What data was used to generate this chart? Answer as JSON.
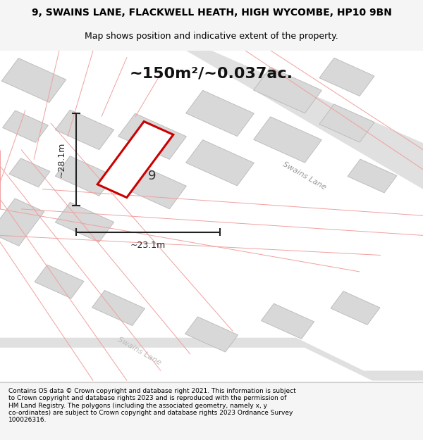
{
  "title_line1": "9, SWAINS LANE, FLACKWELL HEATH, HIGH WYCOMBE, HP10 9BN",
  "title_line2": "Map shows position and indicative extent of the property.",
  "area_text": "~150m²/~0.037ac.",
  "dim_width": "~23.1m",
  "dim_height": "~28.1m",
  "plot_number": "9",
  "footer_wrapped": "Contains OS data © Crown copyright and database right 2021. This information is subject\nto Crown copyright and database rights 2023 and is reproduced with the permission of\nHM Land Registry. The polygons (including the associated geometry, namely x, y\nco-ordinates) are subject to Crown copyright and database rights 2023 Ordnance Survey\n100026316.",
  "bg_color": "#f5f5f5",
  "map_bg": "#ffffff",
  "road_color": "#e0e0e0",
  "building_fill": "#d8d8d8",
  "building_stroke": "#b8b8b8",
  "red_line_color": "#cc0000",
  "pink_line_color": "#f0a0a0",
  "dim_line_color": "#222222",
  "road_label_color": "#999999",
  "title_color": "#000000",
  "footer_color": "#000000"
}
